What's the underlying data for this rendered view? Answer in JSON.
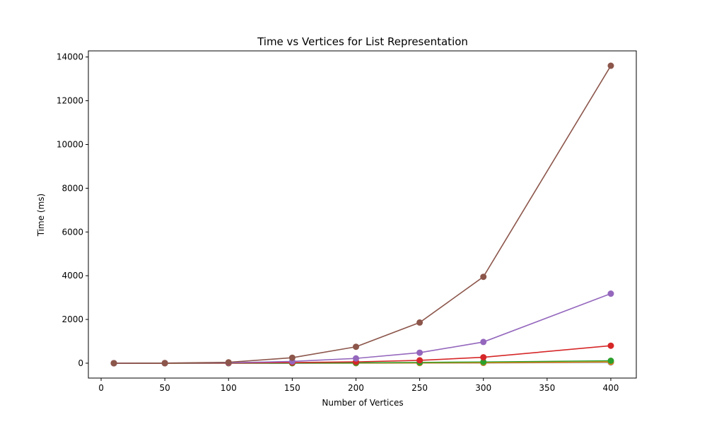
{
  "chart_data": {
    "type": "line",
    "title": "Time vs Vertices for List Representation",
    "xlabel": "Number of Vertices",
    "ylabel": "Time (ms)",
    "xlim": [
      -10,
      420
    ],
    "ylim": [
      -680,
      14280
    ],
    "xticks": [
      0,
      50,
      100,
      150,
      200,
      250,
      300,
      350,
      400
    ],
    "yticks": [
      0,
      2000,
      4000,
      6000,
      8000,
      10000,
      12000,
      14000
    ],
    "grid": false,
    "legend": false,
    "x": [
      10,
      50,
      100,
      150,
      200,
      250,
      300,
      400
    ],
    "series": [
      {
        "color": "#1f77b4",
        "values": [
          0,
          0,
          1,
          2,
          4,
          8,
          14,
          40
        ]
      },
      {
        "color": "#ff7f0e",
        "values": [
          0,
          0,
          1,
          3,
          6,
          12,
          20,
          55
        ]
      },
      {
        "color": "#2ca02c",
        "values": [
          0,
          1,
          3,
          8,
          18,
          35,
          55,
          110
        ]
      },
      {
        "color": "#d62728",
        "values": [
          0,
          2,
          10,
          30,
          60,
          130,
          270,
          800
        ]
      },
      {
        "color": "#9467bd",
        "values": [
          0,
          3,
          20,
          80,
          220,
          480,
          970,
          3180
        ]
      },
      {
        "color": "#8c564b",
        "values": [
          0,
          5,
          40,
          250,
          750,
          1860,
          3950,
          13600
        ]
      }
    ]
  }
}
